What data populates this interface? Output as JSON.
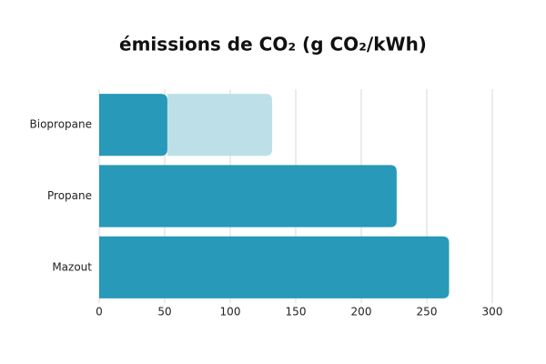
{
  "chart_data": {
    "type": "bar",
    "orientation": "horizontal",
    "title": "émissions de CO₂ (g CO₂/kWh)",
    "categories": [
      "Biopropane",
      "Propane",
      "Mazout"
    ],
    "series": [
      {
        "color": "#2899b8",
        "values": [
          52,
          227,
          267
        ]
      },
      {
        "color": "#bde0e8",
        "values": [
          80,
          null,
          null
        ]
      }
    ],
    "xlim": [
      0,
      300
    ],
    "xticks": [
      0,
      50,
      100,
      150,
      200,
      250,
      300
    ],
    "grid": true
  }
}
